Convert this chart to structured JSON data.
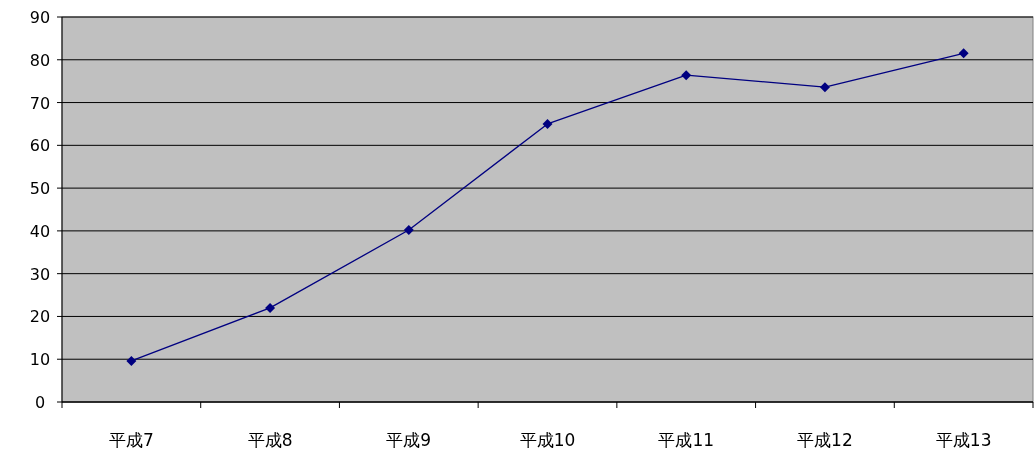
{
  "chart_data": {
    "type": "line",
    "categories": [
      "平成7",
      "平成8",
      "平成9",
      "平成10",
      "平成11",
      "平成12",
      "平成13"
    ],
    "series": [
      {
        "color": "#000080",
        "values": [
          9.6,
          22.0,
          40.2,
          65.0,
          76.4,
          73.6,
          81.5
        ]
      }
    ],
    "ylim": [
      0,
      90
    ],
    "yticks": [
      0,
      10,
      20,
      30,
      40,
      50,
      60,
      70,
      80,
      90
    ],
    "grid": "y",
    "marker": "diamond",
    "line_style": "solid"
  }
}
